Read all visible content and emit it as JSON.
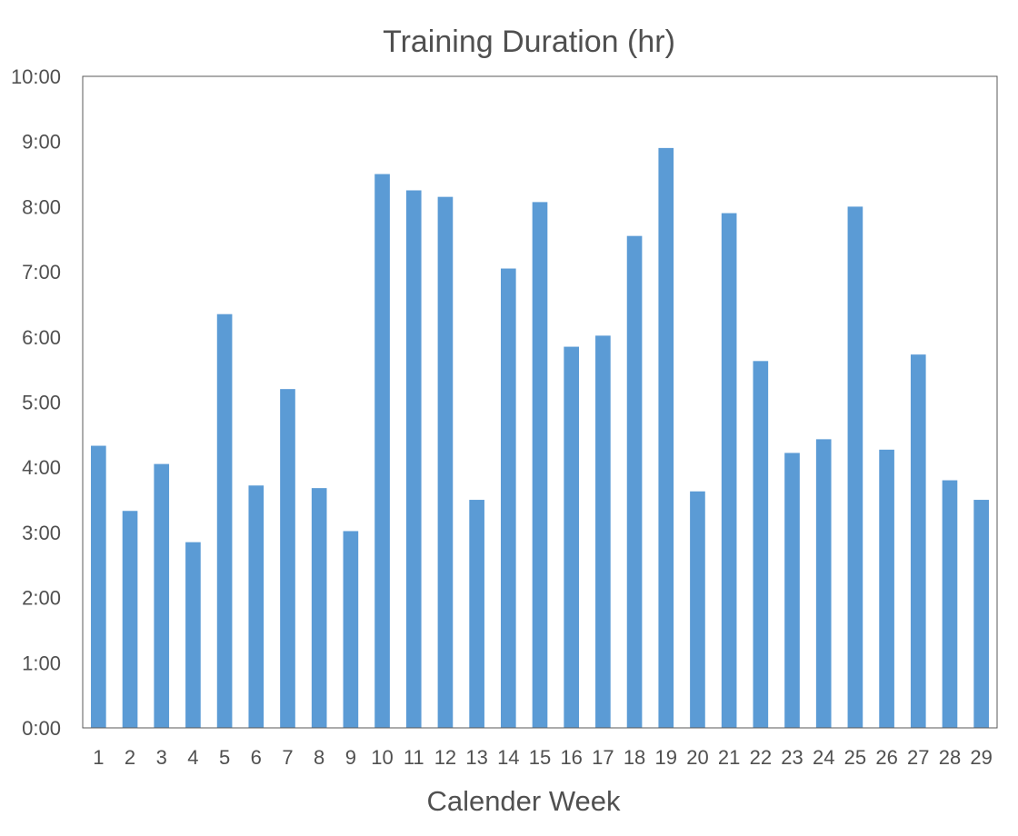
{
  "chart_data": {
    "type": "bar",
    "title": "Training Duration (hr)",
    "xlabel": "Calender Week",
    "ylabel": "",
    "categories": [
      "1",
      "2",
      "3",
      "4",
      "5",
      "6",
      "7",
      "8",
      "9",
      "10",
      "11",
      "12",
      "13",
      "14",
      "15",
      "16",
      "17",
      "18",
      "19",
      "20",
      "21",
      "22",
      "23",
      "24",
      "25",
      "26",
      "27",
      "28",
      "29"
    ],
    "values": [
      4.33,
      3.33,
      4.05,
      2.85,
      6.35,
      3.72,
      5.2,
      3.68,
      3.02,
      8.5,
      8.25,
      8.15,
      3.5,
      7.05,
      8.07,
      5.85,
      6.02,
      7.55,
      8.9,
      3.63,
      7.9,
      5.63,
      4.22,
      4.43,
      8.0,
      4.27,
      5.73,
      3.8,
      3.5
    ],
    "ylim": [
      0,
      10
    ],
    "yticks": [
      "0:00",
      "1:00",
      "2:00",
      "3:00",
      "4:00",
      "5:00",
      "6:00",
      "7:00",
      "8:00",
      "9:00",
      "10:00"
    ],
    "grid": false,
    "legend": "none",
    "bar_color": "#5b9bd5",
    "axis_color": "#595959",
    "text_color": "#505050"
  }
}
